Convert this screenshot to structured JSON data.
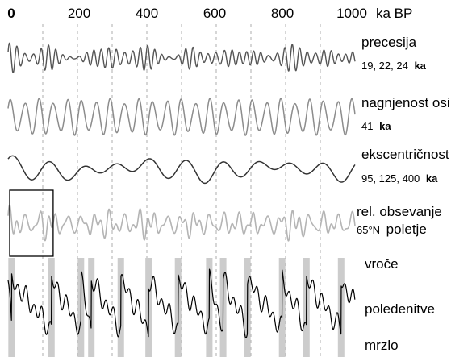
{
  "chart_data": {
    "type": "line",
    "x_axis": {
      "range": [
        0,
        1000
      ],
      "ticks": [
        "0",
        "200",
        "400",
        "600",
        "800",
        "1000"
      ],
      "tick_values": [
        0,
        200,
        400,
        600,
        800,
        1000
      ],
      "unit_label": "ka BP",
      "gridlines_at": [
        100,
        200,
        300,
        400,
        500,
        600,
        700,
        800,
        900
      ],
      "grid": "dashed vertical"
    },
    "series": [
      {
        "name": "precesija",
        "periods_label": "19, 22, 24",
        "periods_unit": "ka",
        "periods_ka": [
          19,
          22,
          24
        ],
        "color": "#555555"
      },
      {
        "name": "nagnjenost osi",
        "periods_label": "41",
        "periods_unit": "ka",
        "periods_ka": [
          41
        ],
        "color": "#8c8c8c"
      },
      {
        "name": "ekscentričnost",
        "periods_label": "95, 125, 400",
        "periods_unit": "ka",
        "periods_ka": [
          95,
          125,
          400
        ],
        "color": "#333333"
      },
      {
        "name": "rel. obsevanje",
        "periods_label": "65°N",
        "periods_unit": "poletje",
        "color": "#b4b4b4"
      },
      {
        "name": "poledenitve",
        "top_label": "vroče",
        "bottom_label": "mrzlo",
        "color": "#000000"
      }
    ],
    "interglacials_ka": [
      10,
      125,
      210,
      240,
      325,
      405,
      490,
      580,
      620,
      690,
      790,
      860,
      960
    ],
    "interglacial_color": "#cccccc",
    "inset_box_range_ka": [
      0,
      130
    ]
  }
}
